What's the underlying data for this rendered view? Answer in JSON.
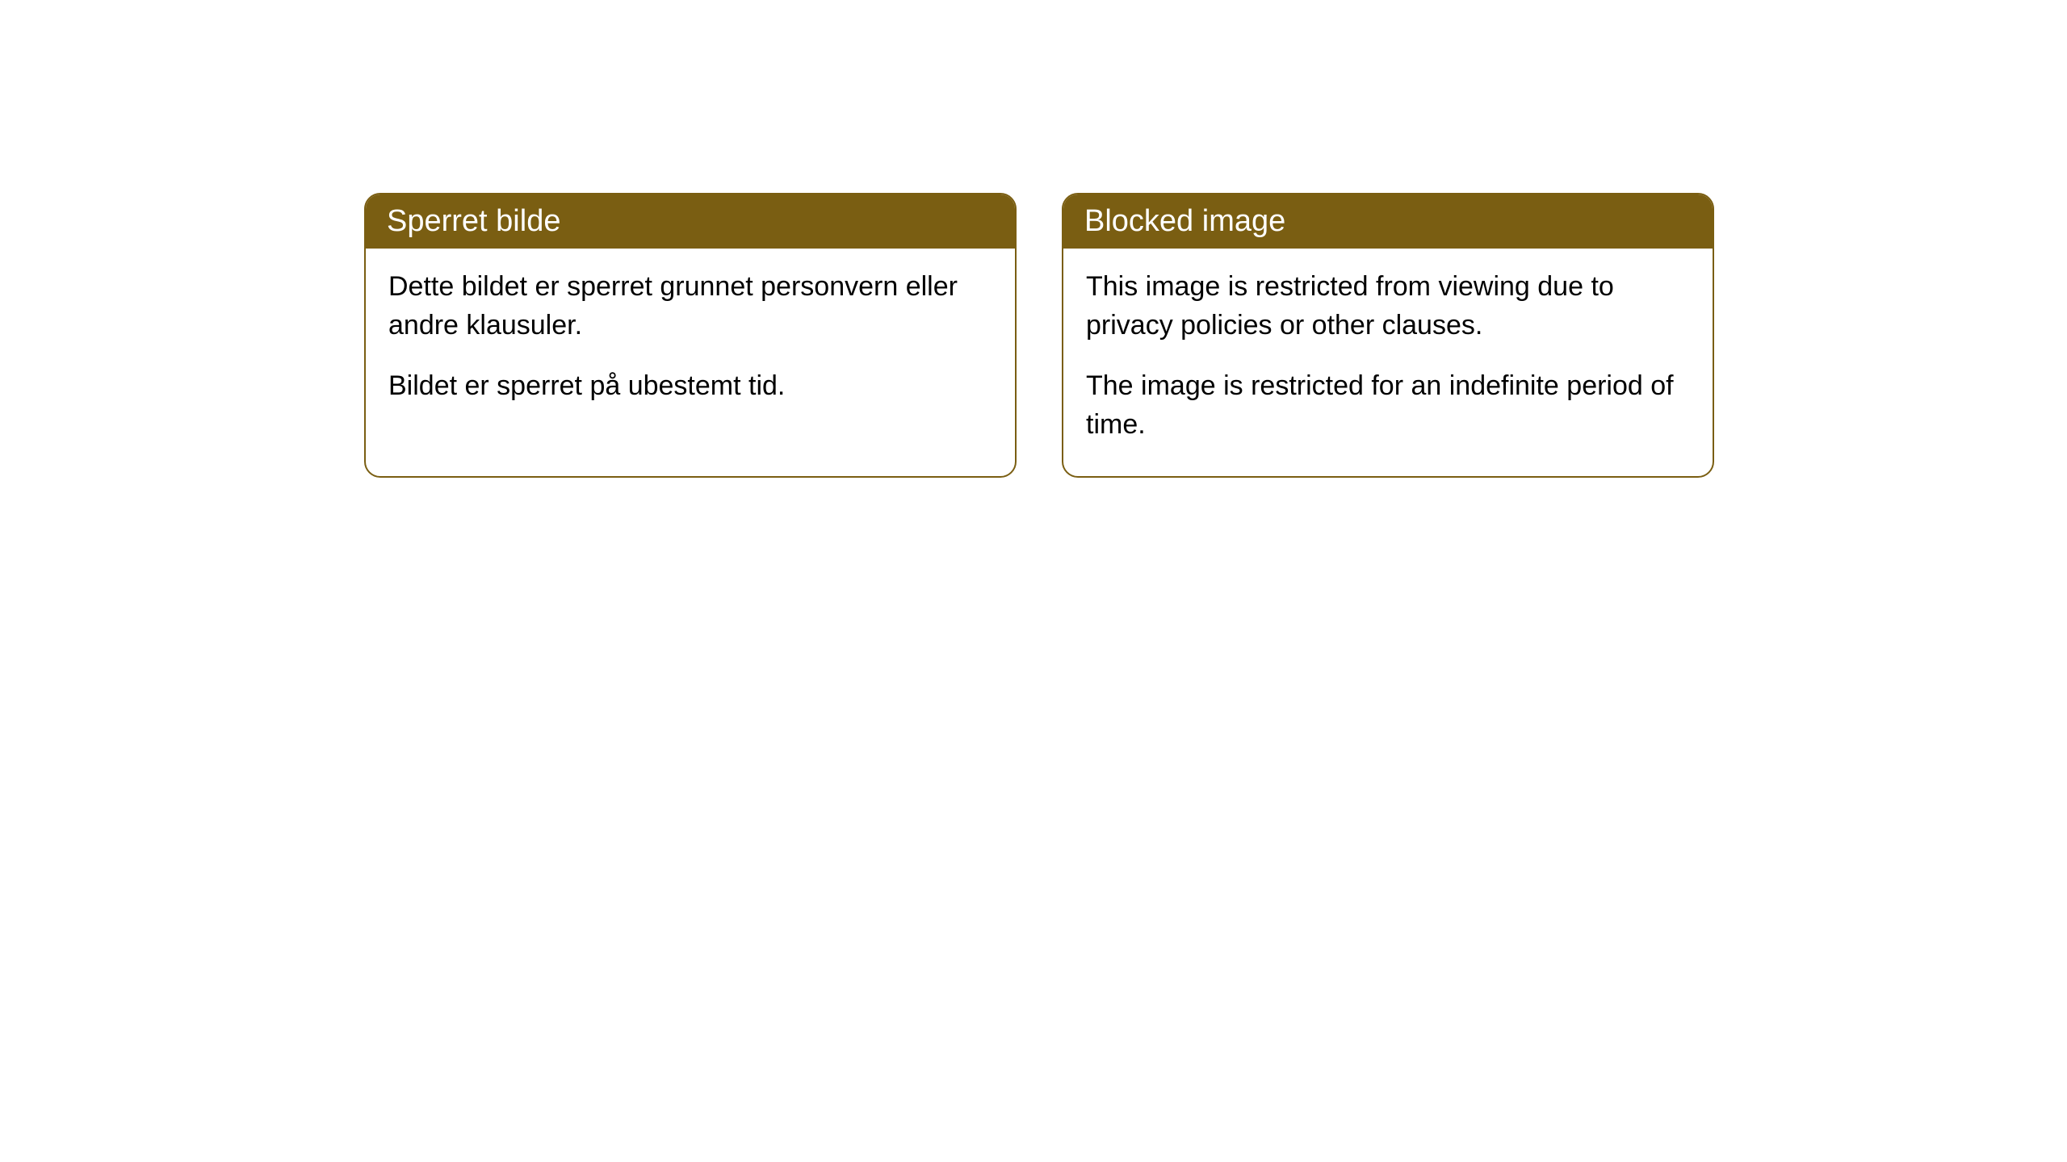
{
  "cards": [
    {
      "title": "Sperret bilde",
      "paragraph1": "Dette bildet er sperret grunnet personvern eller andre klausuler.",
      "paragraph2": "Bildet er sperret på ubestemt tid."
    },
    {
      "title": "Blocked image",
      "paragraph1": "This image is restricted from viewing due to privacy policies or other clauses.",
      "paragraph2": "The image is restricted for an indefinite period of time."
    }
  ],
  "styling": {
    "header_background": "#7a5e12",
    "header_text_color": "#ffffff",
    "border_color": "#7a5e12",
    "body_background": "#ffffff",
    "body_text_color": "#000000",
    "border_radius": 20,
    "title_fontsize": 38,
    "body_fontsize": 34
  }
}
